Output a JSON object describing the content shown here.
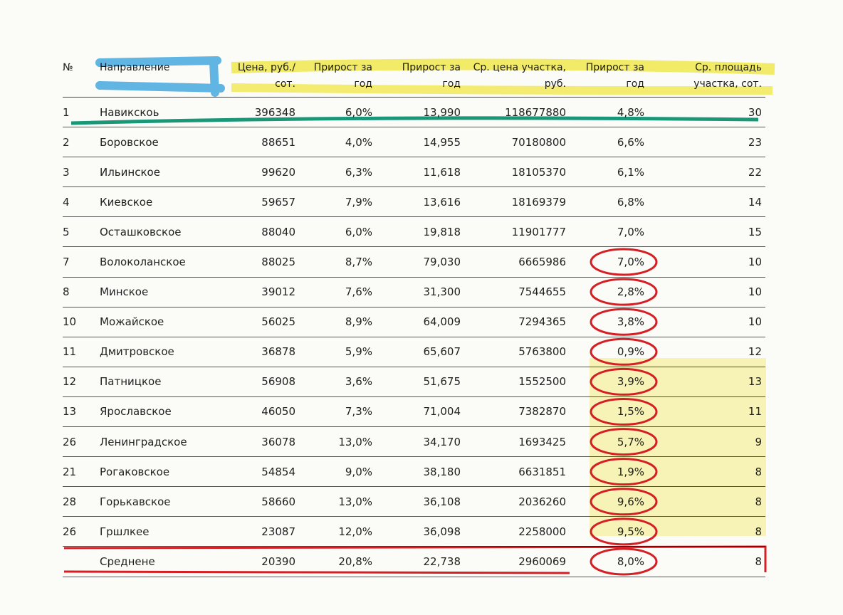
{
  "table": {
    "header": [
      [
        "№"
      ],
      [
        "Направление"
      ],
      [
        "Цена, руб./",
        "сот."
      ],
      [
        "Прирост за",
        "год"
      ],
      [
        "Прирост за",
        "год"
      ],
      [
        "Ср. цена участка,",
        "руб."
      ],
      [
        "Прирост за",
        "год"
      ],
      [
        "Ср. площадь",
        "участка, сот."
      ]
    ],
    "rows": [
      [
        "1",
        "Навикскоь",
        "396348",
        "6,0%",
        "13,990",
        "118677880",
        "4,8%",
        "30"
      ],
      [
        "2",
        "Боровское",
        "88651",
        "4,0%",
        "14,955",
        "70180800",
        "6,6%",
        "23"
      ],
      [
        "3",
        "Ильинское",
        "99620",
        "6,3%",
        "11,618",
        "18105370",
        "6,1%",
        "22"
      ],
      [
        "4",
        "Киевское",
        "59657",
        "7,9%",
        "13,616",
        "18169379",
        "6,8%",
        "14"
      ],
      [
        "5",
        "Осташковское",
        "88040",
        "6,0%",
        "19,818",
        "11901777",
        "7,0%",
        "15"
      ],
      [
        "7",
        "Волоколанское",
        "88025",
        "8,7%",
        "79,030",
        "6665986",
        "7,0%",
        "10"
      ],
      [
        "8",
        "Минское",
        "39012",
        "7,6%",
        "31,300",
        "7544655",
        "2,8%",
        "10"
      ],
      [
        "10",
        "Можайское",
        "56025",
        "8,9%",
        "64,009",
        "7294365",
        "3,8%",
        "10"
      ],
      [
        "11",
        "Дмитровское",
        "36878",
        "5,9%",
        "65,607",
        "5763800",
        "0,9%",
        "12"
      ],
      [
        "12",
        "Патницкое",
        "56908",
        "3,6%",
        "51,675",
        "1552500",
        "3,9%",
        "13"
      ],
      [
        "13",
        "Ярославское",
        "46050",
        "7,3%",
        "71,004",
        "7382870",
        "1,5%",
        "11"
      ],
      [
        "26",
        "Ленинградское",
        "36078",
        "13,0%",
        "34,170",
        "1693425",
        "5,7%",
        "9"
      ],
      [
        "21",
        "Рогаковское",
        "54854",
        "9,0%",
        "38,180",
        "6631851",
        "1,9%",
        "8"
      ],
      [
        "28",
        "Горькавское",
        "58660",
        "13,0%",
        "36,108",
        "2036260",
        "9,6%",
        "8"
      ],
      [
        "26",
        "Гршлкее",
        "23087",
        "12,0%",
        "36,098",
        "2258000",
        "9,5%",
        "8"
      ]
    ],
    "footer": [
      "Среднене",
      "20390",
      "20,8%",
      "22,738",
      "2960069",
      "8,0%",
      "8"
    ]
  }
}
